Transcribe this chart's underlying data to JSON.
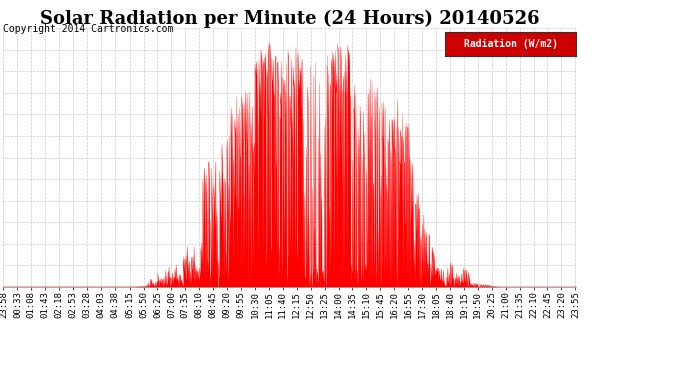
{
  "title": "Solar Radiation per Minute (24 Hours) 20140526",
  "copyright_text": "Copyright 2014 Cartronics.com",
  "legend_label": "Radiation (W/m2)",
  "yticks": [
    0.0,
    89.8,
    179.5,
    269.2,
    359.0,
    448.8,
    538.5,
    628.2,
    718.0,
    807.8,
    897.5,
    987.2,
    1077.0
  ],
  "ymax": 1077.0,
  "ymin": 0.0,
  "fill_color": "#FF0000",
  "line_color": "#FF0000",
  "bg_color": "#FFFFFF",
  "grid_color": "#BBBBBB",
  "title_fontsize": 13,
  "copyright_fontsize": 7,
  "tick_fontsize": 6.5,
  "ytick_fontsize": 8,
  "legend_bg": "#CC0000",
  "legend_text_color": "#FFFFFF",
  "xtick_labels": [
    "23:58",
    "00:33",
    "01:08",
    "01:43",
    "02:18",
    "02:53",
    "03:28",
    "04:03",
    "04:38",
    "05:15",
    "05:50",
    "06:25",
    "07:00",
    "07:35",
    "08:10",
    "08:45",
    "09:20",
    "09:55",
    "10:30",
    "11:05",
    "11:40",
    "12:15",
    "12:50",
    "13:25",
    "14:00",
    "14:35",
    "15:10",
    "15:45",
    "16:20",
    "16:55",
    "17:30",
    "18:05",
    "18:40",
    "19:15",
    "19:50",
    "20:25",
    "21:00",
    "21:35",
    "22:10",
    "22:45",
    "23:20",
    "23:55"
  ]
}
